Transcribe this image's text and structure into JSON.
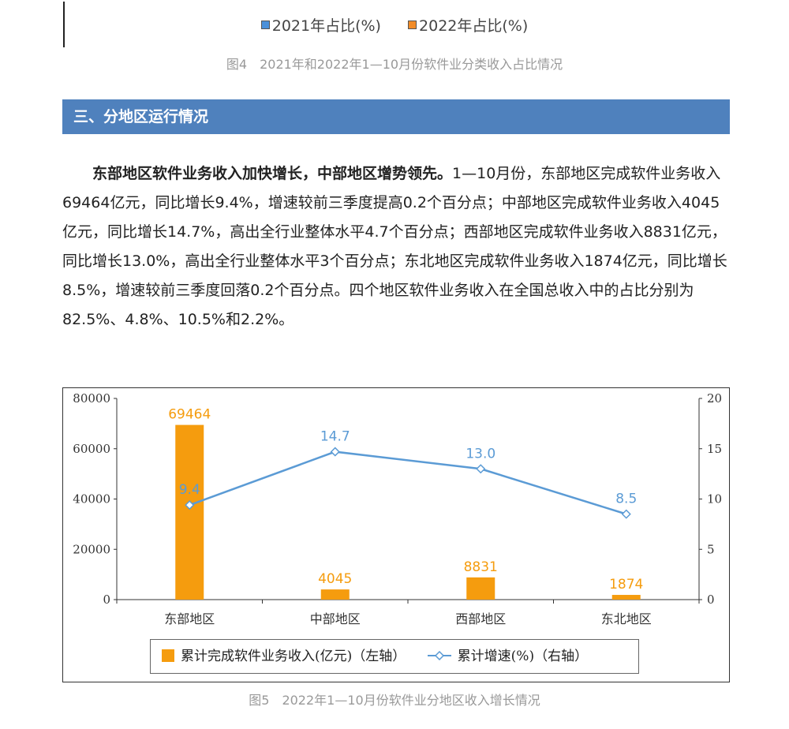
{
  "fig4": {
    "legend": [
      {
        "label": "2021年占比(%)",
        "color": "#4a90d9"
      },
      {
        "label": "2022年占比(%)",
        "color": "#f28c28"
      }
    ],
    "caption": "图4　2021年和2022年1—10月份软件业分类收入占比情况"
  },
  "section": {
    "title": "三、分地区运行情况"
  },
  "paragraph": {
    "lead": "东部地区软件业务收入加快增长，中部地区增势领先。",
    "body": "1—10月份，东部地区完成软件业务收入69464亿元，同比增长9.4%，增速较前三季度提高0.2个百分点；中部地区完成软件业务收入4045亿元，同比增长14.7%，高出全行业整体水平4.7个百分点；西部地区完成软件业务收入8831亿元，同比增长13.0%，高出全行业整体水平3个百分点；东北地区完成软件业务收入1874亿元，同比增长8.5%，增速较前三季度回落0.2个百分点。四个地区软件业务收入在全国总收入中的占比分别为82.5%、4.8%、10.5%和2.2%。"
  },
  "chart_data": {
    "type": "bar",
    "categories": [
      "东部地区",
      "中部地区",
      "西部地区",
      "东北地区"
    ],
    "series": [
      {
        "name": "累计完成软件业务收入(亿元)（左轴）",
        "type": "bar",
        "axis": "left",
        "values": [
          69464,
          4045,
          8831,
          1874
        ],
        "labels": [
          "69464",
          "4045",
          "8831",
          "1874"
        ],
        "color": "#f59c0e"
      },
      {
        "name": "累计增速(%)（右轴）",
        "type": "line",
        "axis": "right",
        "values": [
          9.4,
          14.7,
          13.0,
          8.5
        ],
        "labels": [
          "9.4",
          "14.7",
          "13.0",
          "8.5"
        ],
        "color": "#5b9bd5"
      }
    ],
    "ylim_left": [
      0,
      80000
    ],
    "yticks_left": [
      "80000",
      "60000",
      "40000",
      "20000",
      "0"
    ],
    "ylim_right": [
      0,
      20
    ],
    "yticks_right": [
      "20",
      "15",
      "10",
      "5",
      "0"
    ],
    "legend_position": "bottom",
    "caption": "图5　2022年1—10月份软件业分地区收入增长情况"
  }
}
